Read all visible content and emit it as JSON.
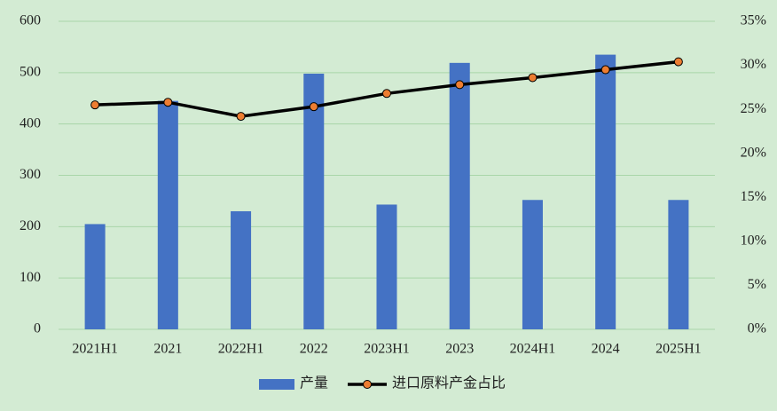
{
  "chart_data": {
    "type": "bar",
    "categories": [
      "2021H1",
      "2021",
      "2022H1",
      "2022",
      "2023H1",
      "2023",
      "2024H1",
      "2024",
      "2025H1"
    ],
    "series": [
      {
        "name": "产量",
        "type": "bar",
        "color": "#4472c4",
        "values": [
          205,
          445,
          230,
          498,
          243,
          519,
          252,
          535,
          252
        ]
      },
      {
        "name": "进口原料产金占比",
        "type": "line",
        "axis": "y2",
        "color": "#000000",
        "marker_color": "#ed7d31",
        "values": [
          25.5,
          25.8,
          24.2,
          25.3,
          26.8,
          27.8,
          28.6,
          29.5,
          30.4
        ]
      }
    ],
    "ylim": [
      0,
      600
    ],
    "yticks": [
      0,
      100,
      200,
      300,
      400,
      500,
      600
    ],
    "y2lim": [
      0,
      35
    ],
    "y2ticks": [
      {
        "value": 0,
        "label": "0%"
      },
      {
        "value": 5,
        "label": "5%"
      },
      {
        "value": 10,
        "label": "10%"
      },
      {
        "value": 15,
        "label": "15%"
      },
      {
        "value": 20,
        "label": "20%"
      },
      {
        "value": 25,
        "label": "25%"
      },
      {
        "value": 30,
        "label": "30%"
      },
      {
        "value": 35,
        "label": "35%"
      }
    ],
    "grid": true,
    "legend": "bottom",
    "background": "#d3ebd3"
  }
}
